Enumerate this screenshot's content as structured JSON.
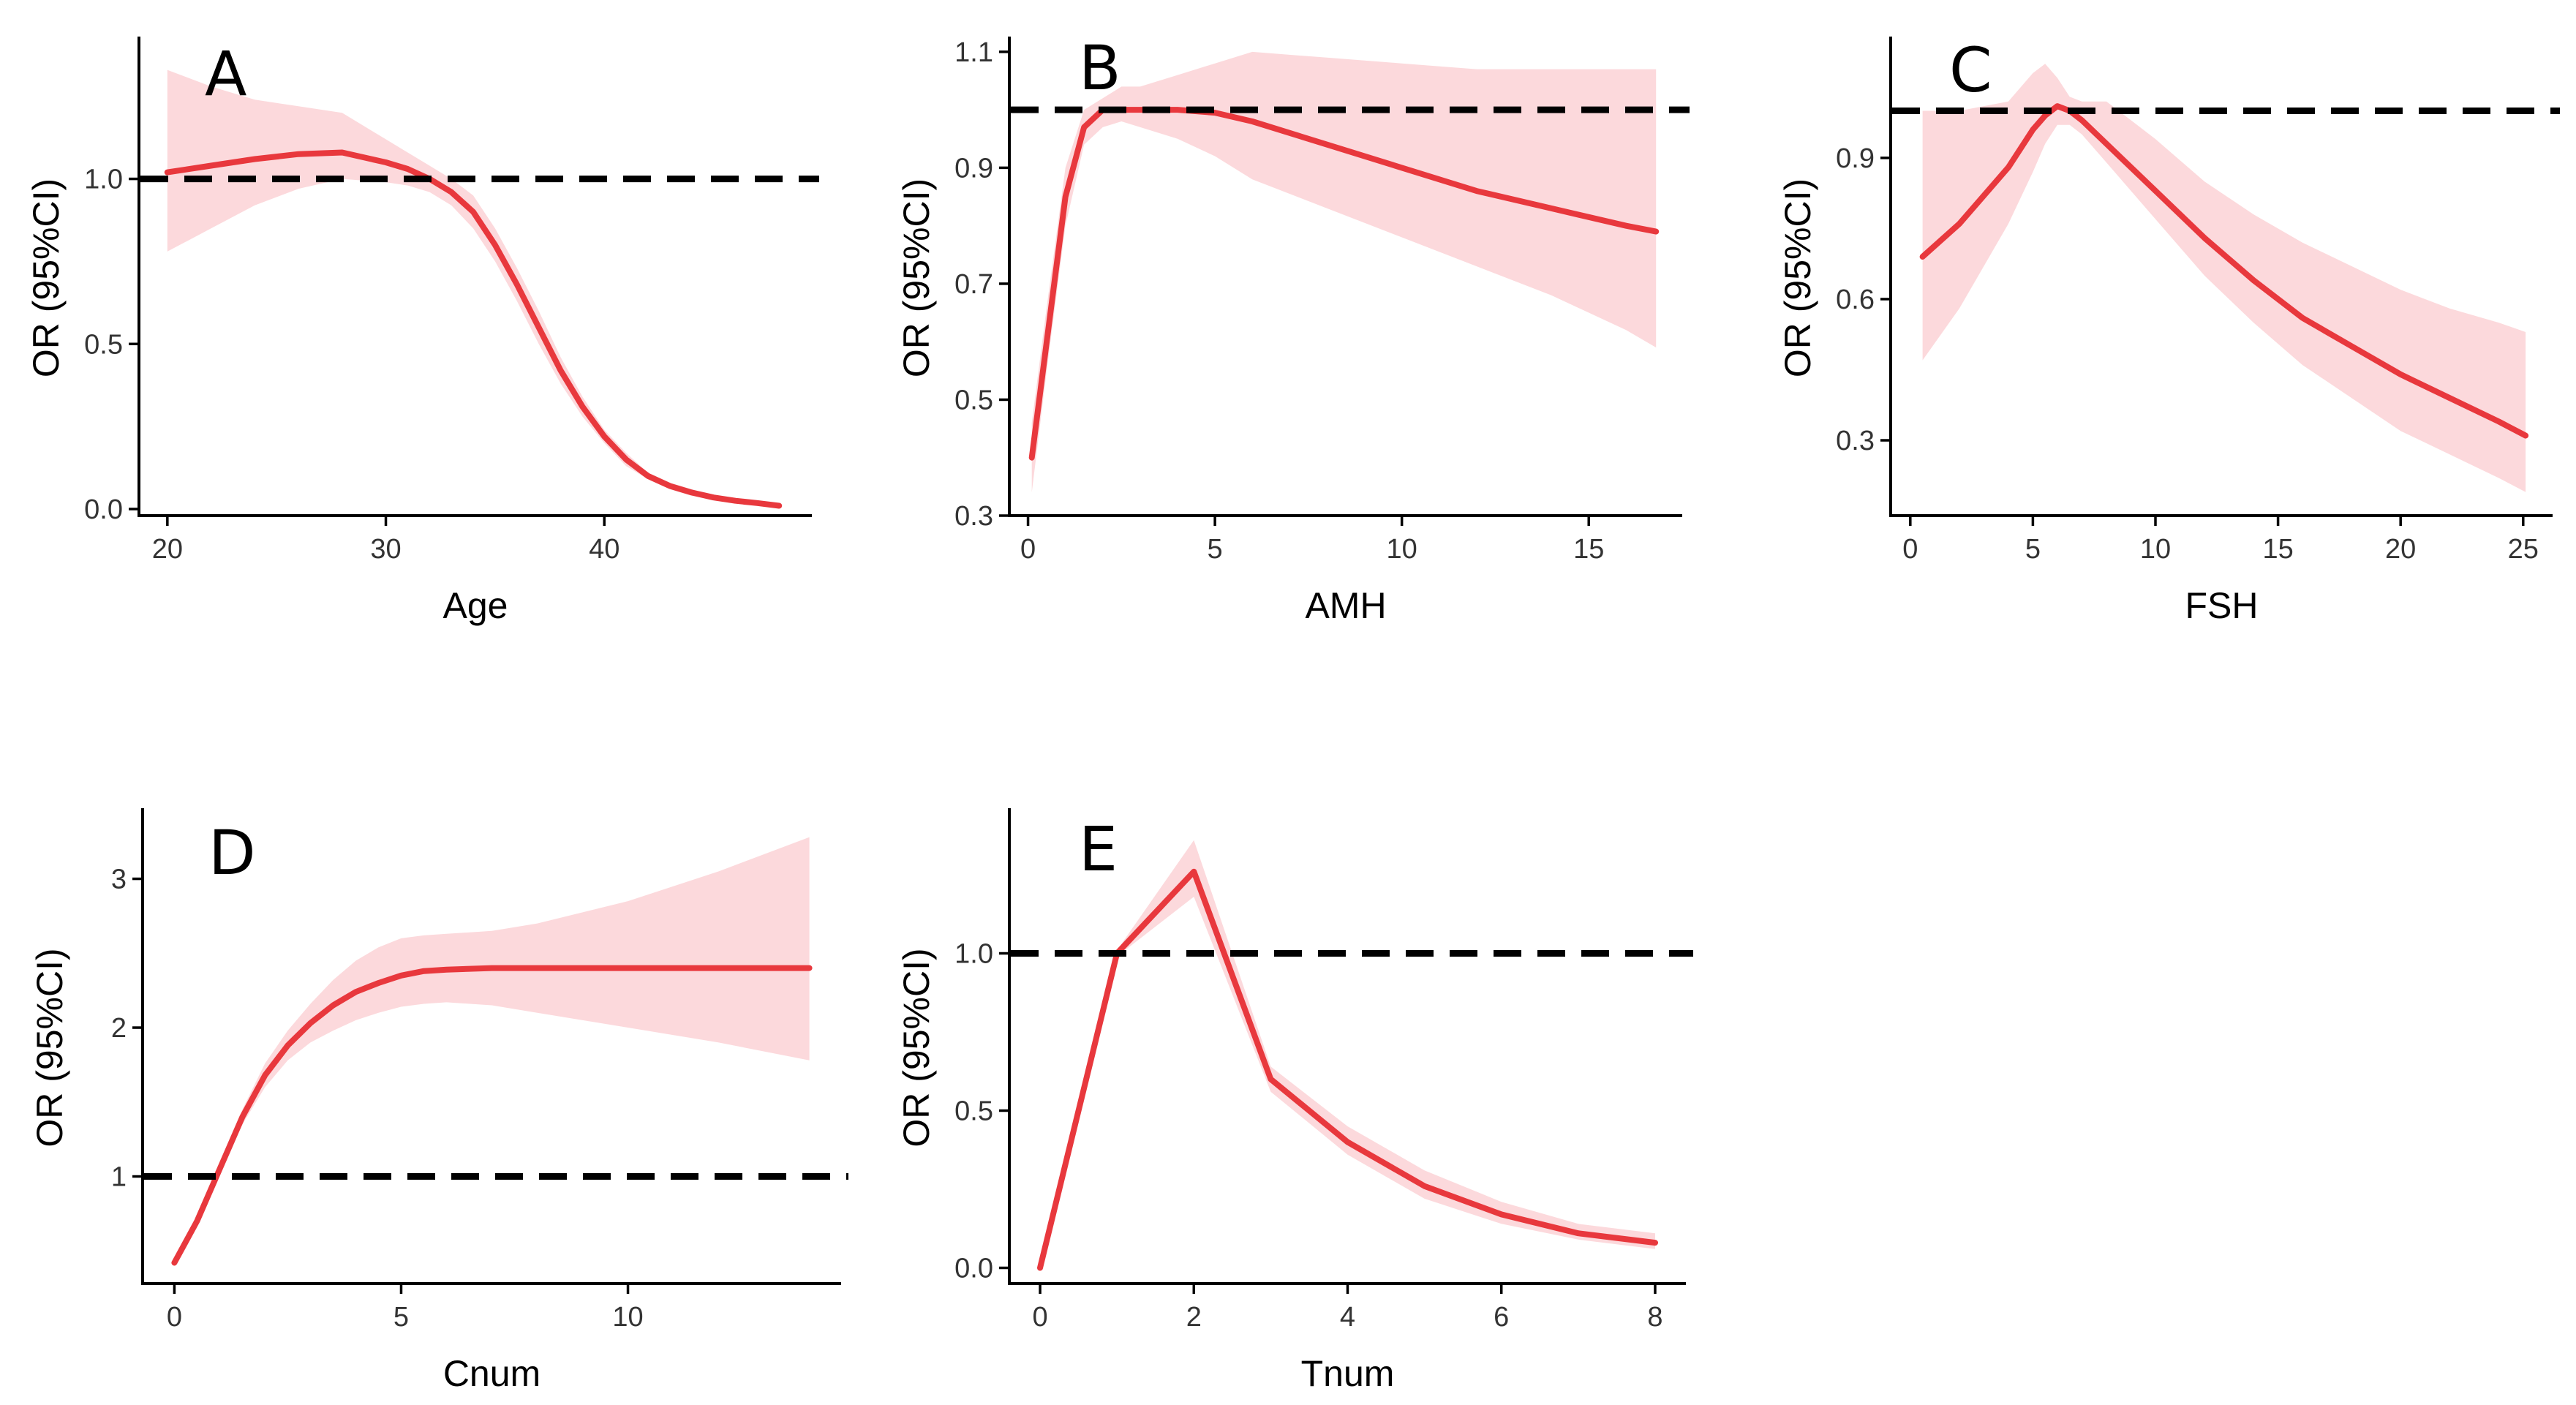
{
  "colors": {
    "line": "#e8383d",
    "band": "#fcd9dc",
    "reference_line": "#000000",
    "background": "#ffffff"
  },
  "chart_data": [
    {
      "type": "line",
      "panel_label": "A",
      "xlabel": "Age",
      "ylabel": "OR (95%CI)",
      "xlim": [
        18.7,
        49.5
      ],
      "ylim": [
        -0.02,
        1.42
      ],
      "xticks": [
        20,
        30,
        40
      ],
      "yticks": [
        0.0,
        0.5,
        1.0
      ],
      "ytick_labels": [
        "0.0",
        "0.5",
        "1.0"
      ],
      "reference_y": 1.0,
      "grid": false,
      "x": [
        20,
        22,
        24,
        26,
        28,
        30,
        31,
        32,
        33,
        34,
        35,
        36,
        37,
        38,
        39,
        40,
        41,
        42,
        43,
        44,
        45,
        46,
        47,
        48
      ],
      "y": [
        1.02,
        1.04,
        1.06,
        1.075,
        1.08,
        1.05,
        1.03,
        1.0,
        0.96,
        0.9,
        0.8,
        0.68,
        0.55,
        0.42,
        0.31,
        0.22,
        0.15,
        0.1,
        0.07,
        0.05,
        0.035,
        0.025,
        0.018,
        0.01
      ],
      "ci_lower": [
        0.78,
        0.85,
        0.92,
        0.97,
        1.0,
        0.99,
        0.98,
        0.96,
        0.92,
        0.85,
        0.75,
        0.63,
        0.5,
        0.38,
        0.28,
        0.2,
        0.13,
        0.09,
        0.06,
        0.04,
        0.03,
        0.02,
        0.015,
        0.008
      ],
      "ci_upper": [
        1.33,
        1.28,
        1.24,
        1.22,
        1.2,
        1.12,
        1.08,
        1.04,
        1.0,
        0.95,
        0.85,
        0.73,
        0.6,
        0.46,
        0.34,
        0.24,
        0.17,
        0.11,
        0.08,
        0.06,
        0.04,
        0.03,
        0.022,
        0.014
      ]
    },
    {
      "type": "line",
      "panel_label": "B",
      "xlabel": "AMH",
      "ylabel": "OR (95%CI)",
      "xlim": [
        -0.5,
        17.5
      ],
      "ylim": [
        0.3,
        1.12
      ],
      "xticks": [
        0,
        5,
        10,
        15
      ],
      "yticks": [
        0.3,
        0.5,
        0.7,
        0.9,
        1.1
      ],
      "ytick_labels": [
        "0.3",
        "0.5",
        "0.7",
        "0.9",
        "1.1"
      ],
      "reference_y": 1.0,
      "grid": false,
      "x": [
        0.1,
        0.5,
        1.0,
        1.5,
        2.0,
        2.5,
        3.0,
        4.0,
        5.0,
        6.0,
        8.0,
        10.0,
        12.0,
        14.0,
        16.0,
        16.8
      ],
      "y": [
        0.4,
        0.6,
        0.85,
        0.97,
        1.0,
        1.0,
        1.0,
        1.0,
        0.995,
        0.98,
        0.94,
        0.9,
        0.86,
        0.83,
        0.8,
        0.79
      ],
      "ci_lower": [
        0.34,
        0.55,
        0.8,
        0.94,
        0.97,
        0.98,
        0.97,
        0.95,
        0.92,
        0.88,
        0.83,
        0.78,
        0.73,
        0.68,
        0.62,
        0.59
      ],
      "ci_upper": [
        0.46,
        0.66,
        0.9,
        1.0,
        1.02,
        1.04,
        1.04,
        1.06,
        1.08,
        1.1,
        1.09,
        1.08,
        1.07,
        1.07,
        1.07,
        1.07
      ]
    },
    {
      "type": "line",
      "panel_label": "C",
      "xlabel": "FSH",
      "ylabel": "OR (95%CI)",
      "xlim": [
        -0.8,
        26.2
      ],
      "ylim": [
        0.14,
        1.15
      ],
      "xticks": [
        0,
        5,
        10,
        15,
        20,
        25
      ],
      "yticks": [
        0.3,
        0.6,
        0.9
      ],
      "ytick_labels": [
        "0.3",
        "0.6",
        "0.9"
      ],
      "reference_y": 1.0,
      "grid": false,
      "x": [
        0.5,
        2,
        4,
        5,
        5.5,
        6,
        6.5,
        7,
        8,
        10,
        12,
        14,
        16,
        18,
        20,
        22,
        24,
        25.1
      ],
      "y": [
        0.69,
        0.76,
        0.88,
        0.96,
        0.99,
        1.01,
        1.0,
        0.98,
        0.93,
        0.83,
        0.73,
        0.64,
        0.56,
        0.5,
        0.44,
        0.39,
        0.34,
        0.31
      ],
      "ci_lower": [
        0.47,
        0.58,
        0.76,
        0.87,
        0.93,
        0.97,
        0.97,
        0.95,
        0.89,
        0.77,
        0.65,
        0.55,
        0.46,
        0.39,
        0.32,
        0.27,
        0.22,
        0.19
      ],
      "ci_upper": [
        1.0,
        1.0,
        1.02,
        1.08,
        1.1,
        1.07,
        1.03,
        1.02,
        1.02,
        0.94,
        0.85,
        0.78,
        0.72,
        0.67,
        0.62,
        0.58,
        0.55,
        0.53
      ]
    },
    {
      "type": "line",
      "panel_label": "D",
      "xlabel": "Cnum",
      "ylabel": "OR (95%CI)",
      "xlim": [
        -0.7,
        14.7
      ],
      "ylim": [
        0.28,
        3.45
      ],
      "xticks": [
        0,
        5,
        10
      ],
      "yticks": [
        1,
        2,
        3
      ],
      "ytick_labels": [
        "1",
        "2",
        "3"
      ],
      "reference_y": 1.0,
      "grid": false,
      "x": [
        0,
        0.5,
        1.0,
        1.5,
        2.0,
        2.5,
        3.0,
        3.5,
        4.0,
        4.5,
        5.0,
        5.5,
        6.0,
        7.0,
        8.0,
        10.0,
        12.0,
        14.0
      ],
      "y": [
        0.42,
        0.7,
        1.05,
        1.4,
        1.68,
        1.88,
        2.03,
        2.15,
        2.24,
        2.3,
        2.35,
        2.38,
        2.39,
        2.4,
        2.4,
        2.4,
        2.4,
        2.4
      ],
      "ci_lower": [
        0.4,
        0.68,
        1.02,
        1.35,
        1.6,
        1.78,
        1.9,
        1.98,
        2.05,
        2.1,
        2.14,
        2.16,
        2.17,
        2.15,
        2.1,
        2.0,
        1.9,
        1.78
      ],
      "ci_upper": [
        0.44,
        0.72,
        1.08,
        1.45,
        1.76,
        1.98,
        2.16,
        2.32,
        2.45,
        2.54,
        2.6,
        2.62,
        2.63,
        2.65,
        2.7,
        2.85,
        3.05,
        3.28
      ]
    },
    {
      "type": "line",
      "panel_label": "E",
      "xlabel": "Tnum",
      "ylabel": "OR (95%CI)",
      "xlim": [
        -0.4,
        8.4
      ],
      "ylim": [
        -0.05,
        1.45
      ],
      "xticks": [
        0,
        2,
        4,
        6,
        8
      ],
      "yticks": [
        0.0,
        0.5,
        1.0
      ],
      "ytick_labels": [
        "0.0",
        "0.5",
        "1.0"
      ],
      "reference_y": 1.0,
      "grid": false,
      "x": [
        0,
        1,
        2,
        3,
        4,
        5,
        6,
        7,
        8
      ],
      "y": [
        0.0,
        1.0,
        1.26,
        0.6,
        0.4,
        0.26,
        0.17,
        0.11,
        0.08
      ],
      "ci_lower": [
        0.0,
        0.99,
        1.18,
        0.56,
        0.36,
        0.22,
        0.14,
        0.09,
        0.06
      ],
      "ci_upper": [
        0.0,
        1.01,
        1.36,
        0.64,
        0.45,
        0.31,
        0.21,
        0.14,
        0.11
      ]
    }
  ]
}
